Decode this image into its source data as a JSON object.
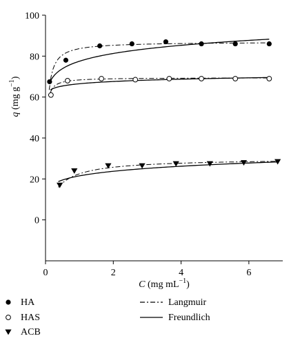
{
  "chart_data": {
    "type": "scatter",
    "xlabel": {
      "symbol": "C",
      "unit": "(mg mL",
      "exp": "−1",
      "close": ")"
    },
    "ylabel": {
      "symbol": "q",
      "unit": "(mg g",
      "exp": "−1",
      "close": ")"
    },
    "xlim": [
      0,
      7
    ],
    "ylim": [
      -20,
      100
    ],
    "xticks": [
      "0",
      "2",
      "4",
      "6"
    ],
    "xtick_values": [
      0,
      2,
      4,
      6
    ],
    "yticks": [
      "0",
      "20",
      "40",
      "60",
      "80",
      "100"
    ],
    "ytick_values": [
      0,
      20,
      40,
      60,
      80,
      100
    ],
    "grid": false,
    "series": [
      {
        "name": "HA",
        "marker": "filled-circle",
        "x": [
          0.12,
          0.6,
          1.6,
          2.55,
          3.55,
          4.6,
          5.6,
          6.6
        ],
        "y": [
          67.5,
          78,
          85,
          86,
          87,
          86,
          86,
          86
        ],
        "langmuir": {
          "qmax": 87,
          "K": 25
        },
        "freundlich": {
          "Kf": 77.5,
          "n": 14.5
        }
      },
      {
        "name": "HAS",
        "marker": "open-circle",
        "x": [
          0.16,
          0.65,
          1.65,
          2.65,
          3.65,
          4.6,
          5.6,
          6.6
        ],
        "y": [
          61,
          68,
          69,
          68.5,
          69,
          69,
          69,
          69
        ],
        "langmuir": {
          "qmax": 69.5,
          "K": 60
        },
        "freundlich": {
          "Kf": 66.5,
          "n": 42
        }
      },
      {
        "name": "ACB",
        "marker": "filled-triangle-down",
        "x": [
          0.42,
          0.85,
          1.85,
          2.85,
          3.85,
          4.85,
          5.85,
          6.85
        ],
        "y": [
          17,
          24,
          26.5,
          26.5,
          27.5,
          27.5,
          28,
          28.5
        ],
        "langmuir": {
          "qmax": 30,
          "K": 3
        },
        "freundlich": {
          "Kf": 21.5,
          "n": 7
        }
      }
    ],
    "fits": [
      {
        "name": "Langmuir",
        "style": "dash-dot"
      },
      {
        "name": "Freundlich",
        "style": "solid"
      }
    ],
    "legend_placement": "bottom, below plot"
  }
}
